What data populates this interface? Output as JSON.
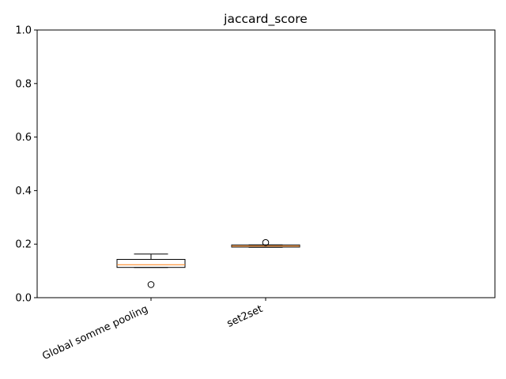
{
  "chart_data": {
    "type": "box",
    "title": "jaccard_score",
    "xlabel": "",
    "ylabel": "",
    "ylim": [
      0.0,
      1.0
    ],
    "yticks": [
      0.0,
      0.2,
      0.4,
      0.6,
      0.8,
      1.0
    ],
    "ytick_labels": [
      "0.0",
      "0.2",
      "0.4",
      "0.6",
      "0.8",
      "1.0"
    ],
    "categories": [
      "Global somme pooling",
      "set2set"
    ],
    "boxes": [
      {
        "label": "Global somme pooling",
        "whislo": 0.113,
        "q1": 0.113,
        "median": 0.123,
        "q3": 0.143,
        "whishi": 0.163,
        "fliers": [
          0.049
        ]
      },
      {
        "label": "set2set",
        "whislo": 0.188,
        "q1": 0.189,
        "median": 0.193,
        "q3": 0.197,
        "whishi": 0.197,
        "fliers": [
          0.206
        ]
      }
    ],
    "grid": false,
    "colors": {
      "box": "#000000",
      "median": "#ff7f0e",
      "background": "#ffffff"
    }
  }
}
